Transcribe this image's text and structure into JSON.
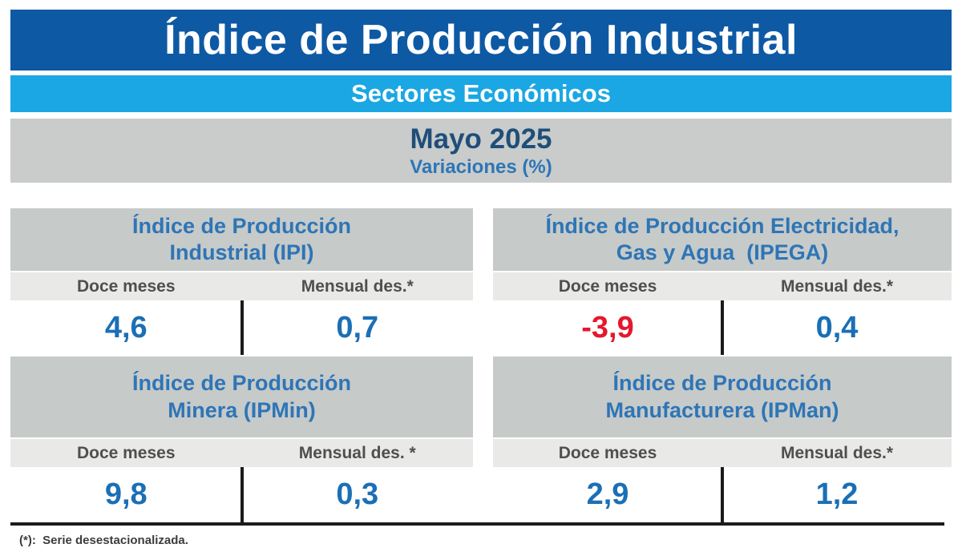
{
  "header": {
    "title": "Índice de Producción Industrial",
    "subtitle": "Sectores Económicos",
    "period": "Mayo 2025",
    "measure": "Variaciones (%)"
  },
  "footnote": {
    "text": "(*):  Serie desestacionalizada."
  },
  "colors": {
    "banner_blue": "#0e59a4",
    "banner_cyan": "#1aa7e3",
    "band_gray": "#c9cccb",
    "card_header_gray": "#c6cac9",
    "label_gray": "#e9e9e7",
    "title_blue": "#1f4e79",
    "accent_blue": "#2e75b6",
    "value_blue": "#1b6fb5",
    "value_red": "#e5182d"
  },
  "cards": [
    {
      "id": "ipi",
      "title_line1": "Índice de Producción",
      "title_line2": "Industrial (IPI)",
      "col1_label": "Doce meses",
      "col2_label": "Mensual des.*",
      "col1_value": "4,6",
      "col2_value": "0,7",
      "col1_color": "#1b6fb5",
      "col2_color": "#1b6fb5"
    },
    {
      "id": "ipega",
      "title_line1": "Índice de Producción Electricidad,",
      "title_line2": "Gas y Agua  (IPEGA)",
      "col1_label": "Doce meses",
      "col2_label": "Mensual des.*",
      "col1_value": "-3,9",
      "col2_value": "0,4",
      "col1_color": "#e5182d",
      "col2_color": "#1b6fb5"
    },
    {
      "id": "ipmin",
      "title_line1": "Índice de Producción",
      "title_line2": "Minera (IPMin)",
      "col1_label": "Doce meses",
      "col2_label": "Mensual des. *",
      "col1_value": "9,8",
      "col2_value": "0,3",
      "col1_color": "#1b6fb5",
      "col2_color": "#1b6fb5"
    },
    {
      "id": "ipman",
      "title_line1": "Índice de Producción",
      "title_line2": "Manufacturera (IPMan)",
      "col1_label": "Doce meses",
      "col2_label": "Mensual des.*",
      "col1_value": "2,9",
      "col2_value": "1,2",
      "col1_color": "#1b6fb5",
      "col2_color": "#1b6fb5"
    }
  ],
  "chart_data": {
    "type": "table",
    "title": "Índice de Producción Industrial",
    "subtitle": "Sectores Económicos",
    "period": "Mayo 2025",
    "unit": "Variaciones (%)",
    "columns": [
      "Doce meses",
      "Mensual des.*"
    ],
    "rows": [
      {
        "indicator": "Índice de Producción Industrial (IPI)",
        "doce_meses": 4.6,
        "mensual_des": 0.7
      },
      {
        "indicator": "Índice de Producción Electricidad, Gas y Agua (IPEGA)",
        "doce_meses": -3.9,
        "mensual_des": 0.4
      },
      {
        "indicator": "Índice de Producción Minera (IPMin)",
        "doce_meses": 9.8,
        "mensual_des": 0.3
      },
      {
        "indicator": "Índice de Producción Manufacturera (IPMan)",
        "doce_meses": 2.9,
        "mensual_des": 1.2
      }
    ],
    "footnote": "(*): Serie desestacionalizada.",
    "negative_value_color": "#e5182d",
    "positive_value_color": "#1b6fb5"
  }
}
